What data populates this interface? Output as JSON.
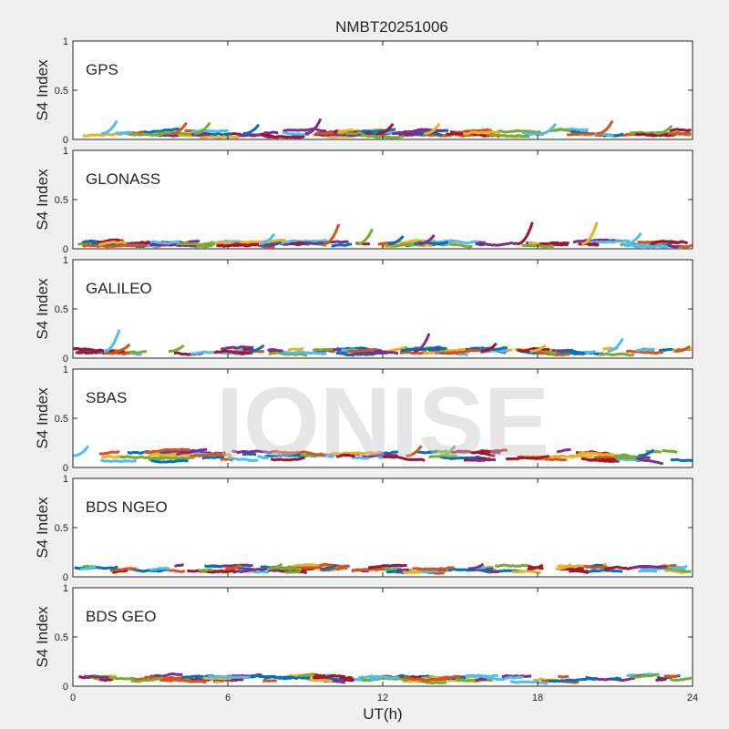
{
  "title": "NMBT20251006",
  "watermark": "IONISE",
  "xlabel": "UT(h)",
  "ylabel": "S4 Index",
  "colors": [
    "#0072BD",
    "#D95319",
    "#EDB120",
    "#7E2F8E",
    "#77AC30",
    "#4DBEEE",
    "#A2142F"
  ],
  "chart_data": [
    {
      "type": "scatter",
      "panel_label": "GPS",
      "ylabel": "S4 Index",
      "xlim": [
        0,
        24
      ],
      "ylim": [
        0,
        1
      ],
      "x_ticks": [
        0,
        6,
        12,
        18,
        24
      ],
      "y_ticks": [
        0,
        0.5,
        1
      ],
      "x_tick_labels": [
        "",
        "",
        "",
        "",
        ""
      ],
      "y_tick_labels": [
        "0",
        "0.5",
        "1"
      ],
      "baseline_s4": 0.06,
      "spikes": [
        [
          1.7,
          0.19
        ],
        [
          4.4,
          0.17
        ],
        [
          5.3,
          0.17
        ],
        [
          7.2,
          0.15
        ],
        [
          9.6,
          0.21
        ],
        [
          12.4,
          0.16
        ],
        [
          14.2,
          0.16
        ],
        [
          18.7,
          0.16
        ],
        [
          20.9,
          0.19
        ],
        [
          23.2,
          0.14
        ]
      ]
    },
    {
      "type": "scatter",
      "panel_label": "GLONASS",
      "ylabel": "S4 Index",
      "xlim": [
        0,
        24
      ],
      "ylim": [
        0,
        1
      ],
      "x_ticks": [
        0,
        6,
        12,
        18,
        24
      ],
      "y_ticks": [
        0,
        0.5,
        1
      ],
      "x_tick_labels": [
        "",
        "",
        "",
        "",
        ""
      ],
      "y_tick_labels": [
        "0",
        "0.5",
        "1"
      ],
      "baseline_s4": 0.05,
      "spikes": [
        [
          7.8,
          0.15
        ],
        [
          10.3,
          0.25
        ],
        [
          11.6,
          0.2
        ],
        [
          12.8,
          0.13
        ],
        [
          14.0,
          0.14
        ],
        [
          17.8,
          0.27
        ],
        [
          20.3,
          0.27
        ],
        [
          22.0,
          0.16
        ]
      ]
    },
    {
      "type": "scatter",
      "panel_label": "GALILEO",
      "ylabel": "S4 Index",
      "xlim": [
        0,
        24
      ],
      "ylim": [
        0,
        1
      ],
      "x_ticks": [
        0,
        6,
        12,
        18,
        24
      ],
      "y_ticks": [
        0,
        0.5,
        1
      ],
      "x_tick_labels": [
        "",
        "",
        "",
        "",
        ""
      ],
      "y_tick_labels": [
        "0",
        "0.5",
        "1"
      ],
      "baseline_s4": 0.07,
      "spikes": [
        [
          1.8,
          0.29
        ],
        [
          2.2,
          0.14
        ],
        [
          4.3,
          0.13
        ],
        [
          7.4,
          0.13
        ],
        [
          13.8,
          0.25
        ],
        [
          16.4,
          0.15
        ],
        [
          18.3,
          0.13
        ],
        [
          21.3,
          0.2
        ],
        [
          23.9,
          0.12
        ]
      ]
    },
    {
      "type": "scatter",
      "panel_label": "SBAS",
      "ylabel": "S4 Index",
      "xlim": [
        0,
        24
      ],
      "ylim": [
        0,
        1
      ],
      "x_ticks": [
        0,
        6,
        12,
        18,
        24
      ],
      "y_ticks": [
        0,
        0.5,
        1
      ],
      "x_tick_labels": [
        "",
        "",
        "",
        "",
        ""
      ],
      "y_tick_labels": [
        "0",
        "0.5",
        "1"
      ],
      "baseline_s4": 0.12,
      "spikes": [
        [
          0.6,
          0.22
        ],
        [
          13.5,
          0.22
        ],
        [
          14.8,
          0.22
        ],
        [
          22.5,
          0.18
        ]
      ]
    },
    {
      "type": "scatter",
      "panel_label": "BDS NGEO",
      "ylabel": "S4 Index",
      "xlim": [
        0,
        24
      ],
      "ylim": [
        0,
        1
      ],
      "x_ticks": [
        0,
        6,
        12,
        18,
        24
      ],
      "y_ticks": [
        0,
        0.5,
        1
      ],
      "x_tick_labels": [
        "",
        "",
        "",
        "",
        ""
      ],
      "y_tick_labels": [
        "0",
        "0.5",
        "1"
      ],
      "baseline_s4": 0.08,
      "spikes": [
        [
          0.9,
          0.11
        ],
        [
          6.5,
          0.12
        ],
        [
          8.1,
          0.13
        ],
        [
          10.2,
          0.12
        ],
        [
          15.9,
          0.13
        ],
        [
          18.2,
          0.12
        ],
        [
          19.3,
          0.13
        ],
        [
          23.8,
          0.11
        ]
      ]
    },
    {
      "type": "scatter",
      "panel_label": "BDS GEO",
      "ylabel": "S4 Index",
      "xlim": [
        0,
        24
      ],
      "ylim": [
        0,
        1
      ],
      "x_ticks": [
        0,
        6,
        12,
        18,
        24
      ],
      "y_ticks": [
        0,
        0.5,
        1
      ],
      "x_tick_labels": [
        "0",
        "6",
        "12",
        "18",
        "24"
      ],
      "y_tick_labels": [
        "0",
        "0.5",
        "1"
      ],
      "baseline_s4": 0.08,
      "spikes": []
    }
  ]
}
